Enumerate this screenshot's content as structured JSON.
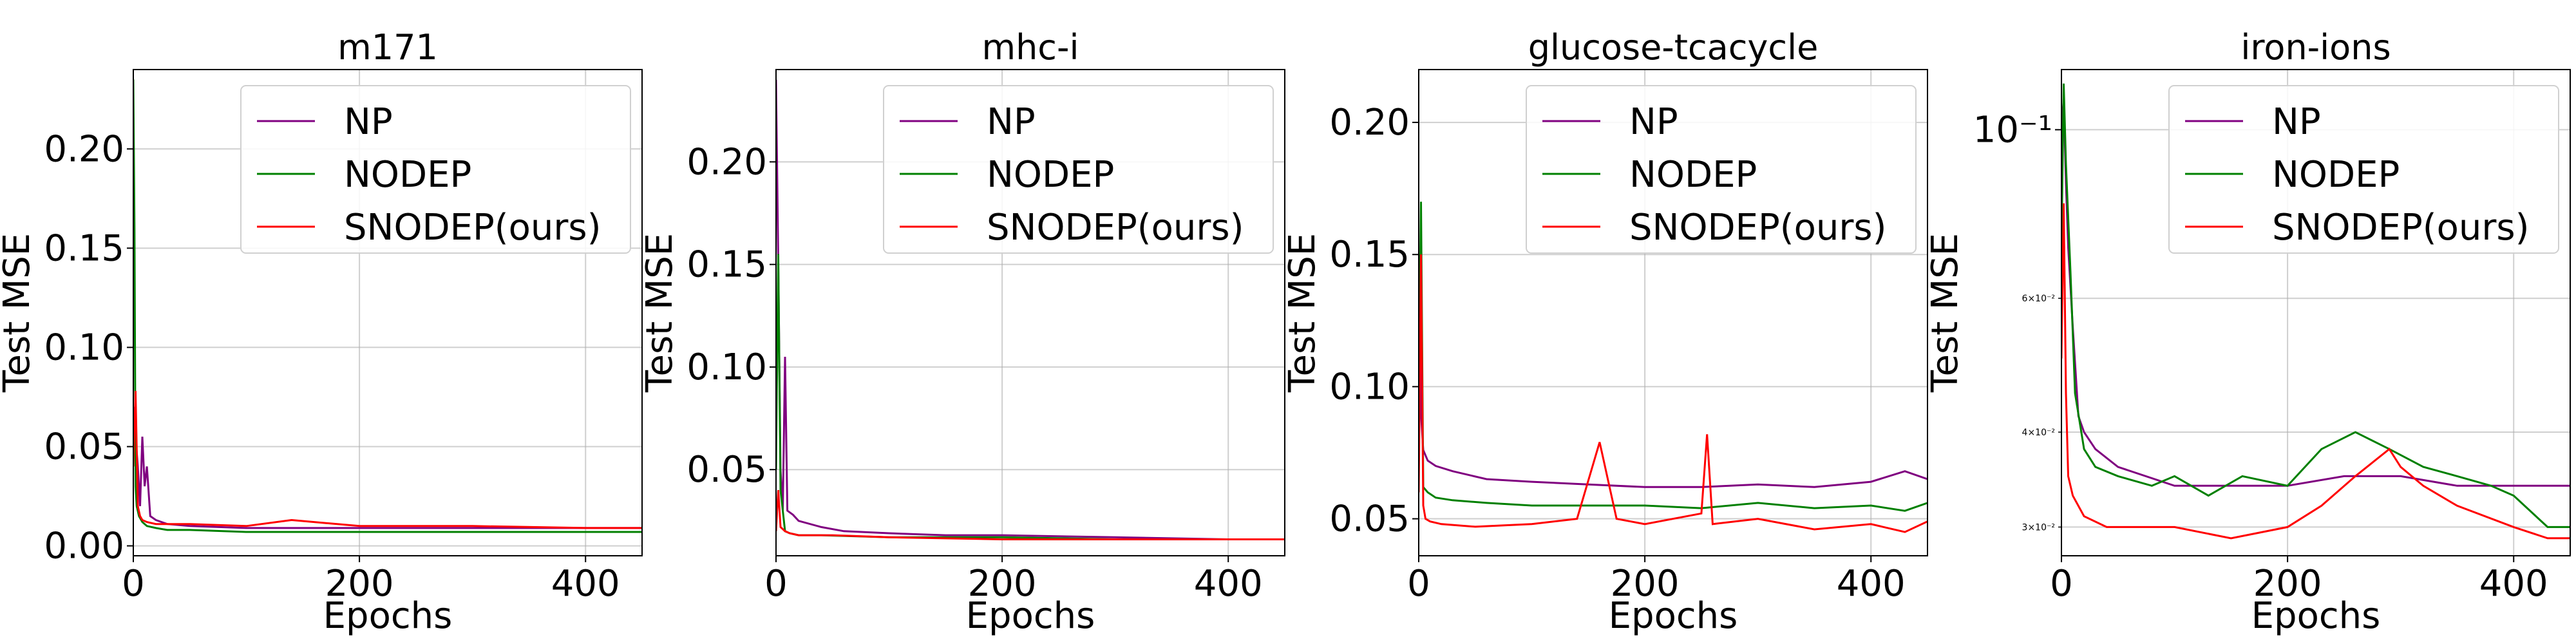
{
  "colors": {
    "NP": "#800080",
    "NODEP": "#008000",
    "SNODEP": "#ff0000"
  },
  "chart_data": [
    {
      "type": "line",
      "title": "m171",
      "xlabel": "Epochs",
      "ylabel": "Test MSE",
      "xlim": [
        0,
        450
      ],
      "ylim": [
        -0.005,
        0.24
      ],
      "xticks": [
        0,
        200,
        400
      ],
      "yticks": [
        {
          "v": 0.0,
          "label": "0.00"
        },
        {
          "v": 0.05,
          "label": "0.05"
        },
        {
          "v": 0.1,
          "label": "0.10"
        },
        {
          "v": 0.15,
          "label": "0.15"
        },
        {
          "v": 0.2,
          "label": "0.20"
        }
      ],
      "grid": true,
      "legend": "upper right",
      "series": [
        {
          "name": "NP",
          "color": "#800080",
          "x": [
            0,
            2,
            4,
            6,
            8,
            10,
            12,
            15,
            20,
            30,
            50,
            100,
            200,
            300,
            400,
            450
          ],
          "y": [
            0.07,
            0.055,
            0.04,
            0.02,
            0.055,
            0.03,
            0.04,
            0.015,
            0.013,
            0.011,
            0.01,
            0.009,
            0.009,
            0.009,
            0.009,
            0.009
          ]
        },
        {
          "name": "NODEP",
          "color": "#008000",
          "x": [
            0,
            1,
            2,
            3,
            5,
            8,
            12,
            20,
            30,
            50,
            100,
            200,
            300,
            400,
            450
          ],
          "y": [
            0.235,
            0.16,
            0.03,
            0.02,
            0.015,
            0.012,
            0.01,
            0.009,
            0.008,
            0.008,
            0.007,
            0.007,
            0.007,
            0.007,
            0.007
          ]
        },
        {
          "name": "SNODEP(ours)",
          "color": "#ff0000",
          "x": [
            0,
            2,
            4,
            6,
            8,
            12,
            20,
            50,
            100,
            140,
            200,
            300,
            400,
            450
          ],
          "y": [
            0.04,
            0.078,
            0.02,
            0.015,
            0.013,
            0.012,
            0.011,
            0.011,
            0.01,
            0.013,
            0.01,
            0.01,
            0.009,
            0.009
          ]
        }
      ]
    },
    {
      "type": "line",
      "title": "mhc-i",
      "xlabel": "Epochs",
      "ylabel": "Test MSE",
      "xlim": [
        0,
        450
      ],
      "ylim": [
        0.008,
        0.245
      ],
      "xticks": [
        0,
        200,
        400
      ],
      "yticks": [
        {
          "v": 0.05,
          "label": "0.05"
        },
        {
          "v": 0.1,
          "label": "0.10"
        },
        {
          "v": 0.15,
          "label": "0.15"
        },
        {
          "v": 0.2,
          "label": "0.20"
        }
      ],
      "grid": true,
      "legend": "upper right",
      "series": [
        {
          "name": "NP",
          "color": "#800080",
          "x": [
            0,
            2,
            4,
            6,
            8,
            10,
            15,
            20,
            40,
            60,
            100,
            150,
            200,
            300,
            400,
            450
          ],
          "y": [
            0.24,
            0.15,
            0.05,
            0.03,
            0.105,
            0.03,
            0.028,
            0.025,
            0.022,
            0.02,
            0.019,
            0.018,
            0.018,
            0.017,
            0.016,
            0.016
          ]
        },
        {
          "name": "NODEP",
          "color": "#008000",
          "x": [
            0,
            2,
            4,
            6,
            8,
            12,
            20,
            40,
            100,
            200,
            300,
            400,
            450
          ],
          "y": [
            0.05,
            0.155,
            0.04,
            0.03,
            0.02,
            0.019,
            0.018,
            0.018,
            0.017,
            0.017,
            0.016,
            0.016,
            0.016
          ]
        },
        {
          "name": "SNODEP(ours)",
          "color": "#ff0000",
          "x": [
            0,
            2,
            4,
            8,
            12,
            20,
            50,
            100,
            200,
            300,
            400,
            450
          ],
          "y": [
            0.02,
            0.04,
            0.022,
            0.02,
            0.019,
            0.018,
            0.018,
            0.017,
            0.016,
            0.016,
            0.016,
            0.016
          ]
        }
      ]
    },
    {
      "type": "line",
      "title": "glucose-tcacycle",
      "xlabel": "Epochs",
      "ylabel": "Test MSE",
      "xlim": [
        0,
        450
      ],
      "ylim": [
        0.036,
        0.22
      ],
      "xticks": [
        0,
        200,
        400
      ],
      "yticks": [
        {
          "v": 0.05,
          "label": "0.05"
        },
        {
          "v": 0.1,
          "label": "0.10"
        },
        {
          "v": 0.15,
          "label": "0.15"
        },
        {
          "v": 0.2,
          "label": "0.20"
        }
      ],
      "grid": true,
      "legend": "upper right",
      "series": [
        {
          "name": "NP",
          "color": "#800080",
          "x": [
            0,
            2,
            4,
            8,
            15,
            30,
            60,
            100,
            150,
            200,
            250,
            300,
            350,
            400,
            430,
            450
          ],
          "y": [
            0.15,
            0.09,
            0.076,
            0.072,
            0.07,
            0.068,
            0.065,
            0.064,
            0.063,
            0.062,
            0.062,
            0.063,
            0.062,
            0.064,
            0.068,
            0.065
          ]
        },
        {
          "name": "NODEP",
          "color": "#008000",
          "x": [
            0,
            2,
            4,
            8,
            15,
            30,
            60,
            100,
            150,
            200,
            250,
            300,
            350,
            400,
            430,
            450
          ],
          "y": [
            0.09,
            0.17,
            0.062,
            0.06,
            0.058,
            0.057,
            0.056,
            0.055,
            0.055,
            0.055,
            0.054,
            0.056,
            0.054,
            0.055,
            0.053,
            0.056
          ]
        },
        {
          "name": "SNODEP(ours)",
          "color": "#ff0000",
          "x": [
            0,
            2,
            4,
            6,
            10,
            20,
            50,
            100,
            140,
            160,
            175,
            200,
            250,
            255,
            260,
            300,
            350,
            400,
            430,
            450
          ],
          "y": [
            0.06,
            0.15,
            0.055,
            0.05,
            0.049,
            0.048,
            0.047,
            0.048,
            0.05,
            0.079,
            0.05,
            0.048,
            0.052,
            0.082,
            0.048,
            0.05,
            0.046,
            0.048,
            0.045,
            0.049
          ]
        }
      ]
    },
    {
      "type": "line",
      "title": "iron-ions",
      "xlabel": "Epochs",
      "ylabel": "Test MSE",
      "scale_y": "log",
      "xlim": [
        0,
        450
      ],
      "ylim": [
        0.0275,
        0.12
      ],
      "xticks": [
        0,
        200,
        400
      ],
      "yticks_major": [
        {
          "v": 0.1,
          "label": "10⁻¹"
        }
      ],
      "yticks_minor": [
        {
          "v": 0.06,
          "label": "6×10⁻²"
        },
        {
          "v": 0.04,
          "label": "4×10⁻²"
        },
        {
          "v": 0.03,
          "label": "3×10⁻²"
        }
      ],
      "grid": true,
      "legend": "upper right",
      "series": [
        {
          "name": "NP",
          "color": "#800080",
          "x": [
            0,
            2,
            4,
            6,
            10,
            15,
            20,
            30,
            50,
            100,
            150,
            200,
            250,
            300,
            350,
            400,
            450
          ],
          "y": [
            0.1,
            0.11,
            0.085,
            0.07,
            0.055,
            0.042,
            0.04,
            0.038,
            0.036,
            0.034,
            0.034,
            0.034,
            0.035,
            0.035,
            0.034,
            0.034,
            0.034
          ]
        },
        {
          "name": "NODEP",
          "color": "#008000",
          "x": [
            0,
            2,
            4,
            8,
            12,
            20,
            30,
            50,
            80,
            100,
            130,
            160,
            200,
            230,
            260,
            290,
            320,
            350,
            380,
            400,
            430,
            450
          ],
          "y": [
            0.07,
            0.115,
            0.09,
            0.065,
            0.045,
            0.038,
            0.036,
            0.035,
            0.034,
            0.035,
            0.033,
            0.035,
            0.034,
            0.038,
            0.04,
            0.038,
            0.036,
            0.035,
            0.034,
            0.033,
            0.03,
            0.03
          ]
        },
        {
          "name": "SNODEP(ours)",
          "color": "#ff0000",
          "x": [
            0,
            2,
            4,
            6,
            10,
            20,
            40,
            60,
            100,
            150,
            200,
            230,
            260,
            290,
            300,
            320,
            350,
            400,
            430,
            450
          ],
          "y": [
            0.05,
            0.08,
            0.045,
            0.035,
            0.033,
            0.031,
            0.03,
            0.03,
            0.03,
            0.029,
            0.03,
            0.032,
            0.035,
            0.038,
            0.036,
            0.034,
            0.032,
            0.03,
            0.029,
            0.029
          ]
        }
      ]
    }
  ]
}
